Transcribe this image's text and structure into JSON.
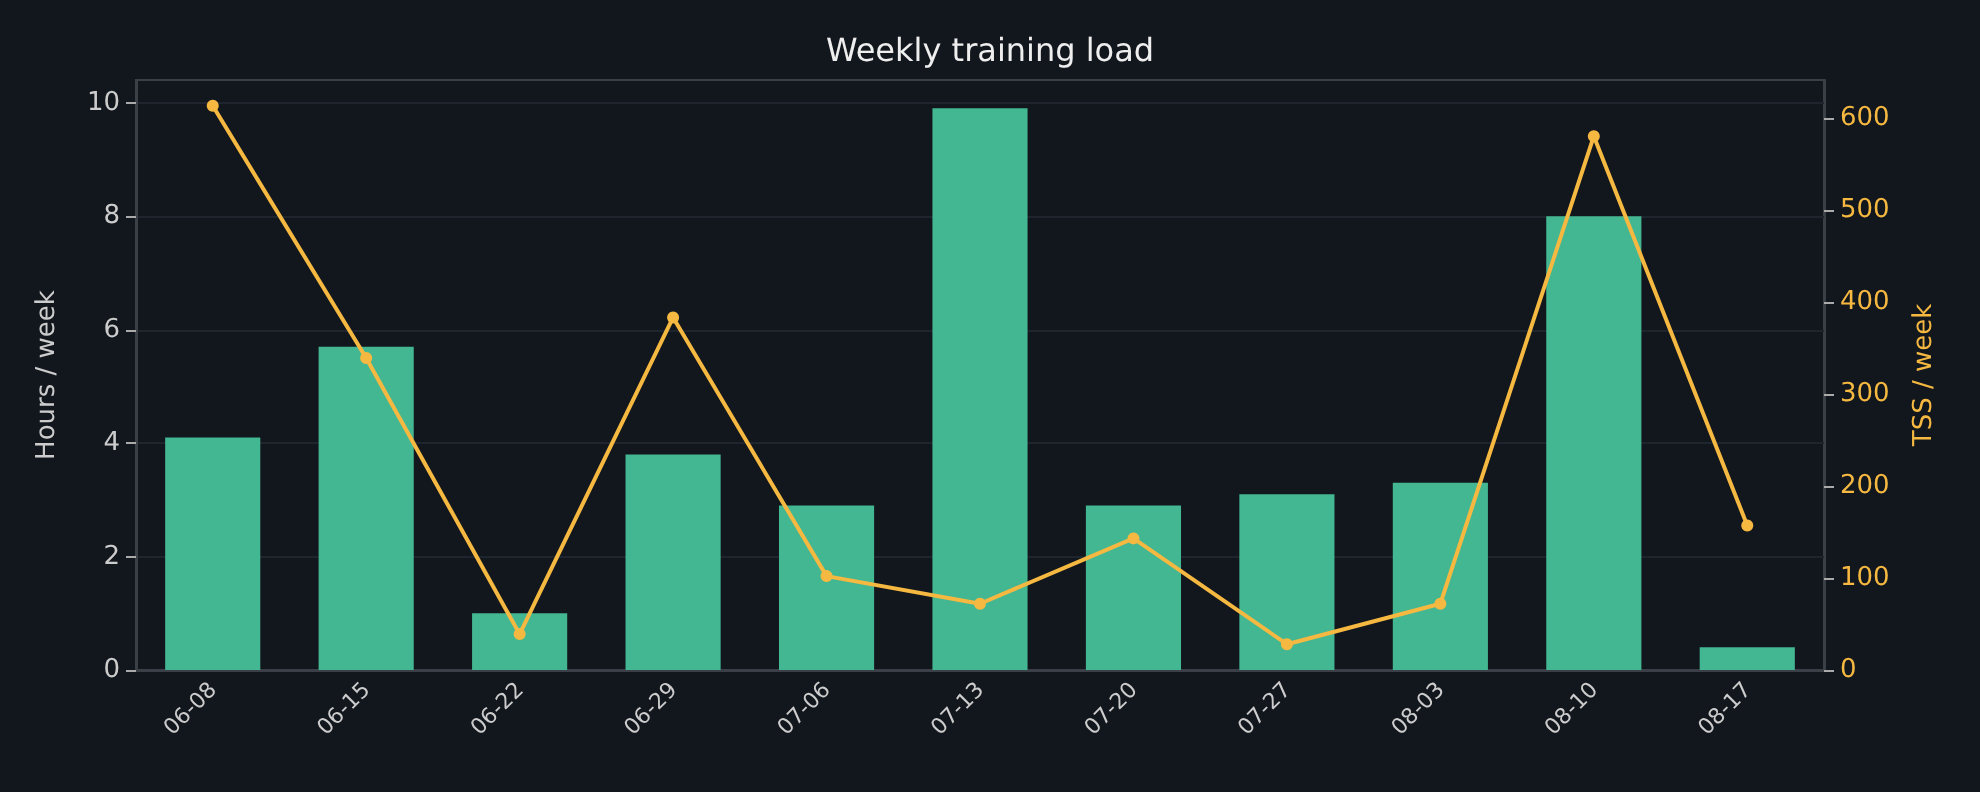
{
  "chart_data": {
    "type": "bar",
    "title": "Weekly training load",
    "ylabel": "Hours / week",
    "y2label": "TSS / week",
    "categories": [
      "06-08",
      "06-15",
      "06-22",
      "06-29",
      "07-06",
      "07-13",
      "07-20",
      "07-27",
      "08-03",
      "08-10",
      "08-17"
    ],
    "series": [
      {
        "color": "#43b692",
        "values": [
          4.1,
          5.7,
          1.0,
          3.8,
          2.9,
          9.9,
          2.9,
          3.1,
          3.3,
          8.0,
          0.4
        ]
      },
      {
        "type": "line",
        "axis": "y2",
        "color": "#f5b841",
        "marker": "circle",
        "values": [
          613,
          339,
          39,
          383,
          102,
          72,
          143,
          28,
          72,
          580,
          157
        ]
      }
    ],
    "ylim": [
      0,
      10.4
    ],
    "yticks": [
      0,
      2,
      4,
      6,
      8,
      10
    ],
    "y2lim": [
      0,
      641
    ],
    "y2ticks": [
      0,
      100,
      200,
      300,
      400,
      500,
      600
    ],
    "grid": "y"
  }
}
